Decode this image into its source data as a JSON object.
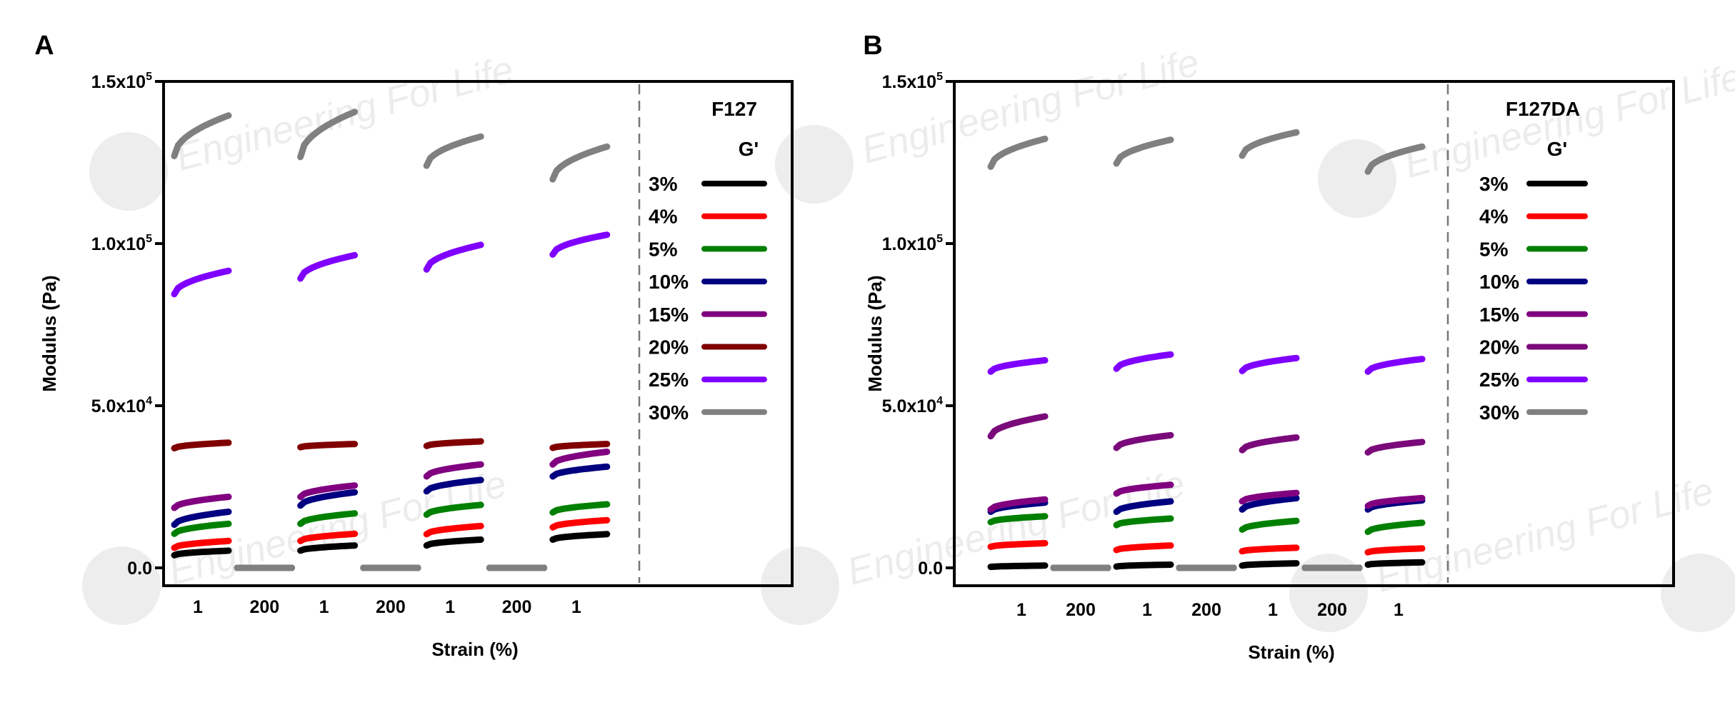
{
  "watermark": "EF2 Engineering For Life",
  "chart_data": [
    {
      "panel_label": "A",
      "type": "line",
      "title": "F127",
      "legend_title": "G'",
      "legend_placement": "right",
      "xlabel": "Strain (%)",
      "ylabel": "Modulus (Pa)",
      "ylim": [
        0,
        150000
      ],
      "yticks": [
        {
          "v": 0,
          "m": "0.0",
          "e": ""
        },
        {
          "v": 50000,
          "m": "5.0x10",
          "e": "4"
        },
        {
          "v": 100000,
          "m": "1.0x10",
          "e": "5"
        },
        {
          "v": 150000,
          "m": "1.5x10",
          "e": "5"
        }
      ],
      "x_steps": [
        "1",
        "200",
        "1",
        "200",
        "1",
        "200",
        "1"
      ],
      "series": [
        {
          "name": "3%",
          "color": "#000000",
          "segments": [
            [
              3900,
              5300
            ],
            [
              5300,
              6900
            ],
            [
              6900,
              8700
            ],
            [
              8700,
              10400
            ]
          ]
        },
        {
          "name": "4%",
          "color": "#ff0000",
          "segments": [
            [
              6200,
              8300
            ],
            [
              8300,
              10500
            ],
            [
              10400,
              12900
            ],
            [
              12500,
              14700
            ]
          ]
        },
        {
          "name": "5%",
          "color": "#008000",
          "segments": [
            [
              10500,
              13600
            ],
            [
              13600,
              16800
            ],
            [
              16400,
              19400
            ],
            [
              17100,
              19600
            ]
          ]
        },
        {
          "name": "10%",
          "color": "#000080",
          "segments": [
            [
              13300,
              17300
            ],
            [
              19200,
              23300
            ],
            [
              23600,
              27100
            ],
            [
              28200,
              31200
            ]
          ]
        },
        {
          "name": "15%",
          "color": "#800080",
          "segments": [
            [
              18500,
              21900
            ],
            [
              21900,
              25400
            ],
            [
              28200,
              31900
            ],
            [
              31900,
              35800
            ]
          ]
        },
        {
          "name": "20%",
          "color": "#800000",
          "segments": [
            [
              36900,
              38600
            ],
            [
              37200,
              38200
            ],
            [
              37600,
              39000
            ],
            [
              37000,
              38200
            ]
          ]
        },
        {
          "name": "25%",
          "color": "#8000ff",
          "segments": [
            [
              84400,
              91600
            ],
            [
              89200,
              96400
            ],
            [
              92000,
              99600
            ],
            [
              96600,
              102700
            ]
          ]
        },
        {
          "name": "30%",
          "color": "#808080",
          "segments": [
            [
              127000,
              139500
            ],
            [
              126700,
              140600
            ],
            [
              124000,
              133000
            ],
            [
              119800,
              129900
            ]
          ]
        }
      ],
      "high_strain_value": 0
    },
    {
      "panel_label": "B",
      "type": "line",
      "title": "F127DA",
      "legend_title": "G'",
      "legend_placement": "right",
      "xlabel": "Strain (%)",
      "ylabel": "Modulus (Pa)",
      "ylim": [
        0,
        150000
      ],
      "yticks": [
        {
          "v": 0,
          "m": "0.0",
          "e": ""
        },
        {
          "v": 50000,
          "m": "5.0x10",
          "e": "4"
        },
        {
          "v": 100000,
          "m": "1.0x10",
          "e": "5"
        },
        {
          "v": 150000,
          "m": "1.5x10",
          "e": "5"
        }
      ],
      "x_steps": [
        "1",
        "200",
        "1",
        "200",
        "1",
        "200",
        "1"
      ],
      "series": [
        {
          "name": "3%",
          "color": "#000000",
          "segments": [
            [
              300,
              700
            ],
            [
              400,
              1000
            ],
            [
              700,
              1400
            ],
            [
              1000,
              1700
            ]
          ]
        },
        {
          "name": "4%",
          "color": "#ff0000",
          "segments": [
            [
              6500,
              7600
            ],
            [
              5500,
              6900
            ],
            [
              5100,
              6200
            ],
            [
              4800,
              6000
            ]
          ]
        },
        {
          "name": "5%",
          "color": "#008000",
          "segments": [
            [
              14100,
              15900
            ],
            [
              13200,
              15200
            ],
            [
              11800,
              14500
            ],
            [
              11100,
              13900
            ]
          ]
        },
        {
          "name": "10%",
          "color": "#000080",
          "segments": [
            [
              17300,
              20100
            ],
            [
              17300,
              20500
            ],
            [
              18000,
              21500
            ],
            [
              18000,
              20800
            ]
          ]
        },
        {
          "name": "15%",
          "color": "#800080",
          "segments": [
            [
              18000,
              21100
            ],
            [
              22900,
              25600
            ],
            [
              20500,
              23100
            ],
            [
              19100,
              21500
            ]
          ]
        },
        {
          "name": "20%",
          "color": "#7a0a7a",
          "segments": [
            [
              40600,
              46700
            ],
            [
              37000,
              40900
            ],
            [
              36300,
              40200
            ],
            [
              35600,
              38800
            ]
          ]
        },
        {
          "name": "25%",
          "color": "#8000ff",
          "segments": [
            [
              60500,
              64000
            ],
            [
              61400,
              65800
            ],
            [
              60700,
              64700
            ],
            [
              60500,
              64400
            ]
          ]
        },
        {
          "name": "30%",
          "color": "#808080",
          "segments": [
            [
              123700,
              132300
            ],
            [
              124700,
              132000
            ],
            [
              127100,
              134300
            ],
            [
              122200,
              129900
            ]
          ]
        }
      ],
      "high_strain_value": 0
    }
  ]
}
